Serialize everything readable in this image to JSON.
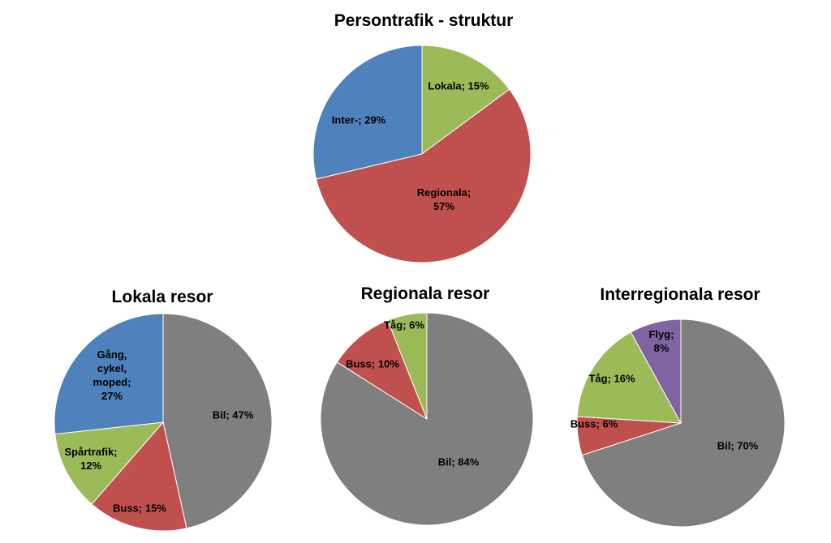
{
  "chart_data": [
    {
      "type": "pie",
      "title": "Persontrafik - struktur",
      "slices": [
        {
          "label": "Lokala",
          "value": 15,
          "label_lines": [
            "Lokala; 15%"
          ],
          "color": "#9bbb59"
        },
        {
          "label": "Regionala",
          "value": 57,
          "label_lines": [
            "Regionala;",
            "57%"
          ],
          "color": "#c0504d"
        },
        {
          "label": "Inter-",
          "value": 29,
          "label_lines": [
            "Inter-; 29%"
          ],
          "color": "#4f81bd"
        }
      ]
    },
    {
      "type": "pie",
      "title": "Lokala resor",
      "slices": [
        {
          "label": "Bil",
          "value": 47,
          "label_lines": [
            "Bil; 47%"
          ],
          "color": "#7f7f7f"
        },
        {
          "label": "Buss",
          "value": 15,
          "label_lines": [
            "Buss; 15%"
          ],
          "color": "#c0504d"
        },
        {
          "label": "Spårtrafik",
          "value": 12,
          "label_lines": [
            "Spårtrafik;",
            "12%"
          ],
          "color": "#9bbb59"
        },
        {
          "label": "Gång, cykel, moped",
          "value": 27,
          "label_lines": [
            "Gång,",
            "cykel,",
            "moped;",
            "27%"
          ],
          "color": "#4f81bd"
        }
      ]
    },
    {
      "type": "pie",
      "title": "Regionala resor",
      "slices": [
        {
          "label": "Bil",
          "value": 84,
          "label_lines": [
            "Bil; 84%"
          ],
          "color": "#7f7f7f"
        },
        {
          "label": "Buss",
          "value": 10,
          "label_lines": [
            "Buss; 10%"
          ],
          "color": "#c0504d"
        },
        {
          "label": "Tåg",
          "value": 6,
          "label_lines": [
            "Tåg; 6%"
          ],
          "color": "#9bbb59"
        }
      ]
    },
    {
      "type": "pie",
      "title": "Interregionala resor",
      "slices": [
        {
          "label": "Bil",
          "value": 70,
          "label_lines": [
            "Bil; 70%"
          ],
          "color": "#7f7f7f"
        },
        {
          "label": "Buss",
          "value": 6,
          "label_lines": [
            "Buss; 6%"
          ],
          "color": "#c0504d"
        },
        {
          "label": "Tåg",
          "value": 16,
          "label_lines": [
            "Tåg; 16%"
          ],
          "color": "#9bbb59"
        },
        {
          "label": "Flyg",
          "value": 8,
          "label_lines": [
            "Flyg;",
            "8%"
          ],
          "color": "#8064a2"
        }
      ]
    }
  ]
}
